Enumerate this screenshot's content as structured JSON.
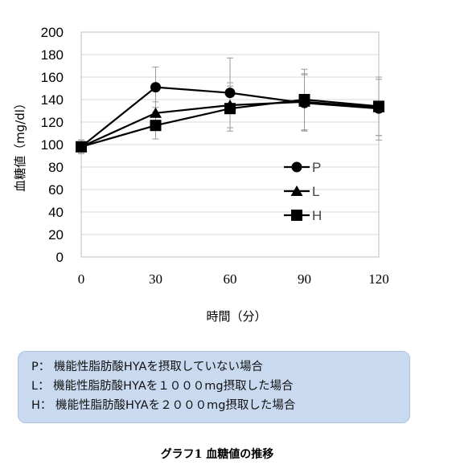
{
  "chart_data": {
    "type": "line",
    "title": "",
    "xlabel": "時間（分）",
    "ylabel": "血糖値（mg/dl）",
    "x": [
      0,
      30,
      60,
      90,
      120
    ],
    "xlim": [
      0,
      120
    ],
    "ylim": [
      0,
      200
    ],
    "yticks": [
      0,
      20,
      40,
      60,
      80,
      100,
      120,
      140,
      160,
      180,
      200
    ],
    "grid": "horizontal",
    "legend_position": "inside-right",
    "series": [
      {
        "name": "P",
        "marker": "circle",
        "values": [
          98,
          151,
          146,
          137,
          132
        ],
        "errors": [
          6,
          18,
          31,
          25,
          28
        ]
      },
      {
        "name": "L",
        "marker": "triangle",
        "values": [
          98,
          128,
          135,
          138,
          133
        ],
        "errors": [
          6,
          10,
          20,
          25,
          25
        ]
      },
      {
        "name": "H",
        "marker": "square",
        "values": [
          98,
          117,
          132,
          140,
          134
        ],
        "errors": [
          6,
          12,
          20,
          27,
          26
        ]
      }
    ],
    "colors": {
      "series": "#000000",
      "error_bars": "#9a9a9a",
      "grid": "#d9d9d9"
    }
  },
  "notes": [
    "P： 機能性脂肪酸HYAを摂取していない場合",
    "L： 機能性脂肪酸HYAを１０００mg摂取した場合",
    "H： 機能性脂肪酸HYAを２０００mg摂取した場合"
  ],
  "notes_box_color": "#c9daf0",
  "caption": "グラフ1  血糖値の推移"
}
